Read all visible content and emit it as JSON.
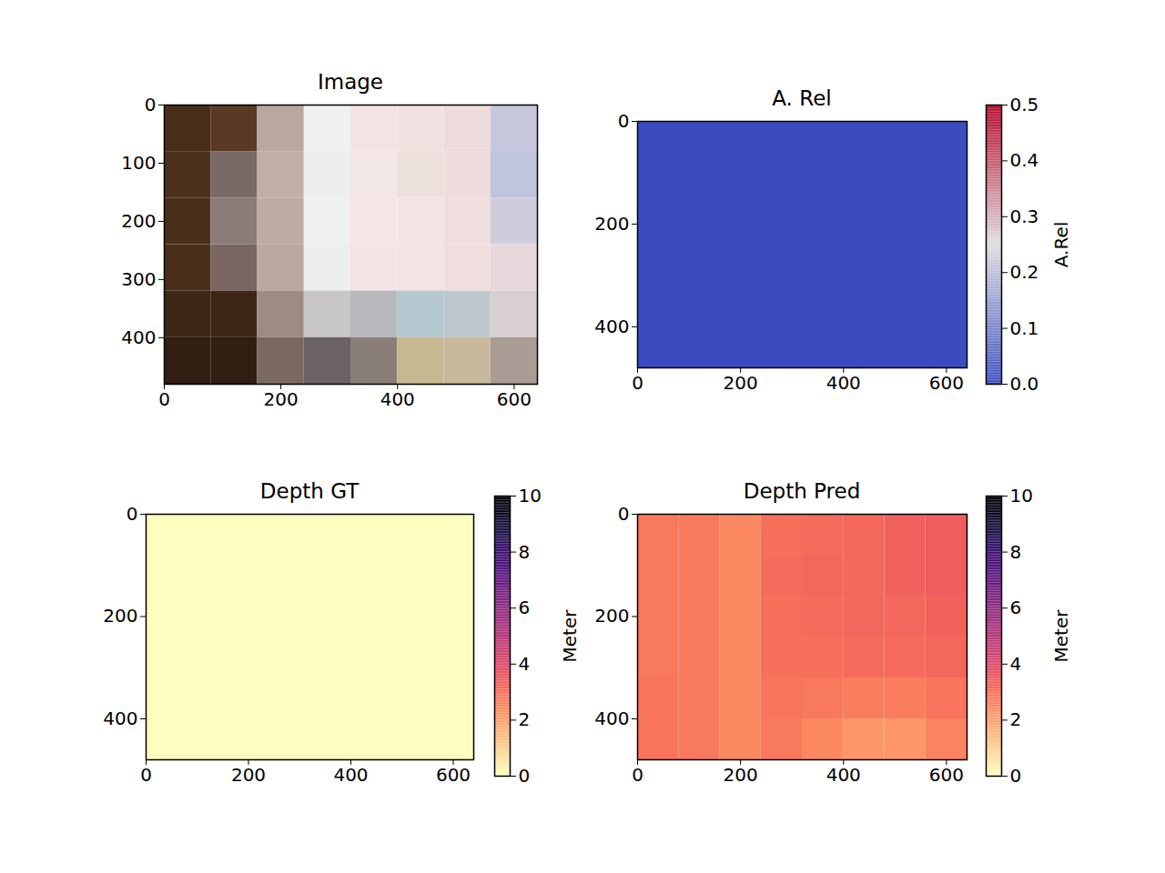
{
  "chart_data": [
    {
      "type": "image",
      "title": "Image",
      "xlim": [
        0,
        640
      ],
      "ylim": [
        480,
        0
      ],
      "xticks": [
        0,
        200,
        400,
        600
      ],
      "yticks": [
        0,
        100,
        200,
        300,
        400
      ],
      "pixels": [
        [
          "#4a2e1c",
          "#5a3a24",
          "#b8a8a0",
          "#eef0f2",
          "#f2e4e4",
          "#f0e2e0",
          "#eedcdc",
          "#c8c8dc"
        ],
        [
          "#4e301e",
          "#7a6a66",
          "#c0b0a8",
          "#eceef0",
          "#f3e6e6",
          "#ece0dc",
          "#efdcdc",
          "#c0c4dc"
        ],
        [
          "#4c2e1c",
          "#8a7a78",
          "#bcaca4",
          "#eef0f2",
          "#f4e6e6",
          "#f3e4e4",
          "#f0dede",
          "#d0ccdc"
        ],
        [
          "#4a2c1a",
          "#7a6660",
          "#b8a8a0",
          "#eceef0",
          "#f2e4e2",
          "#f2e4e4",
          "#f0dedf",
          "#e6d8da"
        ],
        [
          "#3e2616",
          "#3e2616",
          "#9c8c84",
          "#c8c6c8",
          "#b8b8bc",
          "#b4c8d0",
          "#bcc8cc",
          "#d8d0d0"
        ],
        [
          "#321e12",
          "#321e12",
          "#7a6a62",
          "#6a6264",
          "#8a7e78",
          "#c8b890",
          "#c8b89c",
          "#a89c94"
        ]
      ]
    },
    {
      "type": "heatmap",
      "title": "A. Rel",
      "xlim": [
        0,
        640
      ],
      "ylim": [
        480,
        0
      ],
      "xticks": [
        0,
        200,
        400,
        600
      ],
      "yticks": [
        0,
        200,
        400
      ],
      "values": [
        [
          0
        ]
      ],
      "colorbar": {
        "label": "A.Rel",
        "color": "coolwarm",
        "range": [
          0,
          0.5
        ],
        "ticks": [
          {
            "value": 0,
            "label": "0.0"
          },
          {
            "value": 0.1,
            "label": "0.1"
          },
          {
            "value": 0.2,
            "label": "0.2"
          },
          {
            "value": 0.3,
            "label": "0.3"
          },
          {
            "value": 0.4,
            "label": "0.4"
          },
          {
            "value": 0.5,
            "label": "0.5"
          }
        ]
      }
    },
    {
      "type": "heatmap",
      "title": "Depth GT",
      "xlim": [
        0,
        640
      ],
      "ylim": [
        480,
        0
      ],
      "xticks": [
        0,
        200,
        400,
        600
      ],
      "yticks": [
        0,
        200,
        400
      ],
      "values": [
        [
          0
        ]
      ],
      "colorbar": {
        "label": "Meter",
        "color": "magma_r",
        "range": [
          0,
          10
        ],
        "ticks": [
          0,
          2,
          4,
          6,
          8,
          10
        ]
      }
    },
    {
      "type": "heatmap",
      "title": "Depth Pred",
      "xlim": [
        0,
        640
      ],
      "ylim": [
        480,
        0
      ],
      "xticks": [
        0,
        200,
        400,
        600
      ],
      "yticks": [
        0,
        200,
        400
      ],
      "values": [
        [
          2.8,
          2.8,
          2.5,
          3.0,
          3.1,
          3.2,
          3.3,
          3.4
        ],
        [
          2.8,
          2.8,
          2.5,
          3.1,
          3.2,
          3.2,
          3.3,
          3.4
        ],
        [
          2.8,
          2.8,
          2.5,
          3.0,
          3.1,
          3.2,
          3.2,
          3.3
        ],
        [
          2.8,
          2.8,
          2.5,
          3.0,
          3.0,
          3.1,
          3.1,
          3.2
        ],
        [
          2.9,
          2.8,
          2.5,
          2.9,
          2.8,
          2.7,
          2.7,
          2.9
        ],
        [
          2.9,
          2.8,
          2.5,
          2.8,
          2.5,
          2.2,
          2.2,
          2.6
        ]
      ],
      "colorbar": {
        "label": "Meter",
        "color": "magma_r",
        "range": [
          0,
          10
        ],
        "ticks": [
          0,
          2,
          4,
          6,
          8,
          10
        ]
      }
    }
  ]
}
